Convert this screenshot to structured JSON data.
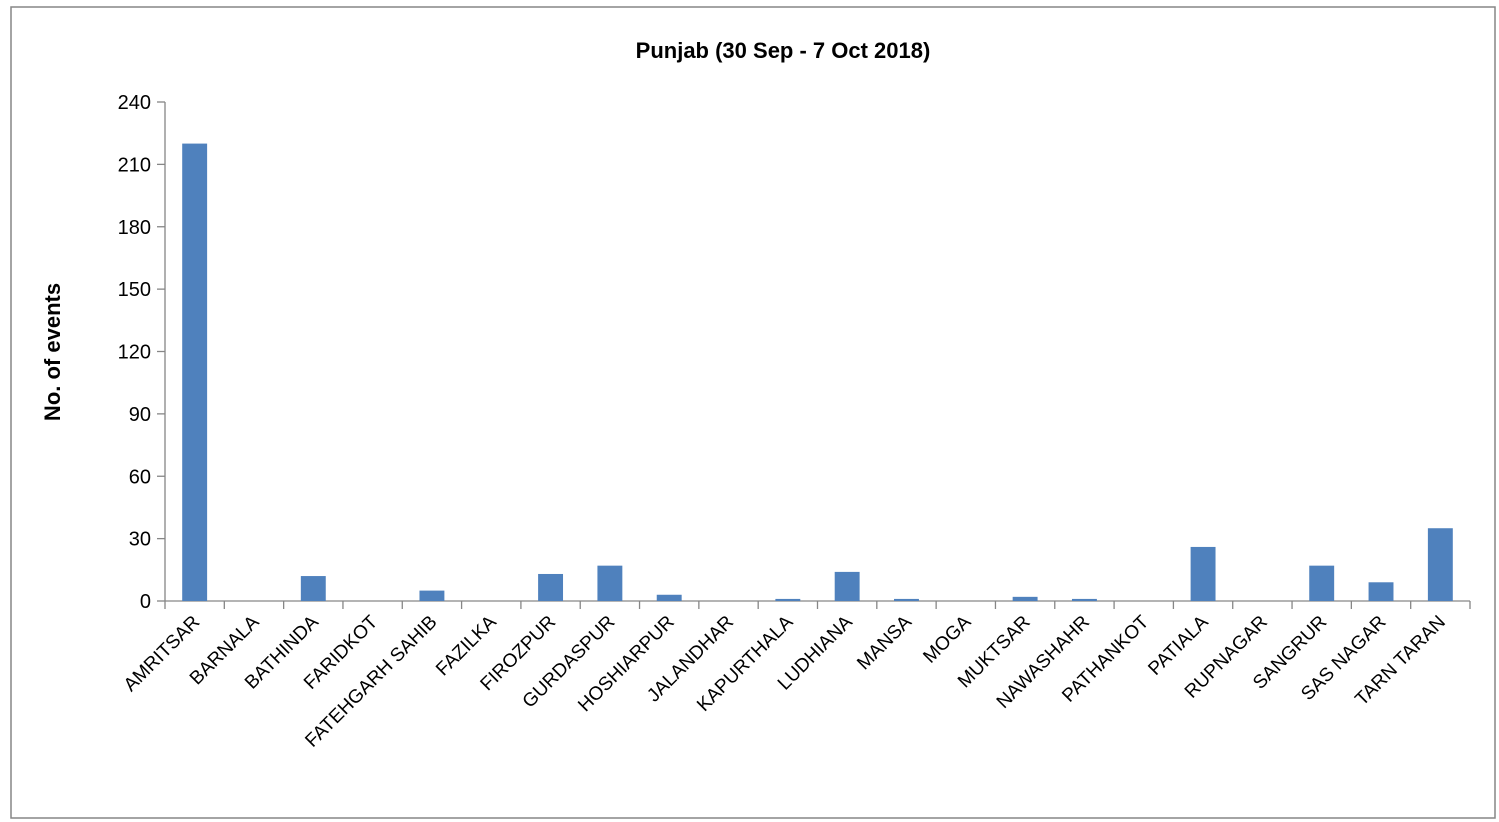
{
  "chart_data": {
    "type": "bar",
    "title": "Punjab (30 Sep - 7 Oct 2018)",
    "ylabel": "No. of events",
    "xlabel": "",
    "ylim": [
      0,
      240
    ],
    "yticks": [
      0,
      30,
      60,
      90,
      120,
      150,
      180,
      210,
      240
    ],
    "grid": false,
    "legend": "none",
    "bar_color": "#4F81BD",
    "categories": [
      "AMRITSAR",
      "BARNALA",
      "BATHINDA",
      "FARIDKOT",
      "FATEHGARH SAHIB",
      "FAZILKA",
      "FIROZPUR",
      "GURDASPUR",
      "HOSHIARPUR",
      "JALANDHAR",
      "KAPURTHALA",
      "LUDHIANA",
      "MANSA",
      "MOGA",
      "MUKTSAR",
      "NAWASHAHR",
      "PATHANKOT",
      "PATIALA",
      "RUPNAGAR",
      "SANGRUR",
      "SAS NAGAR",
      "TARN TARAN"
    ],
    "values": [
      220,
      0,
      12,
      0,
      5,
      0,
      13,
      17,
      3,
      0,
      1,
      14,
      1,
      0,
      2,
      1,
      0,
      26,
      0,
      17,
      9,
      35
    ]
  }
}
